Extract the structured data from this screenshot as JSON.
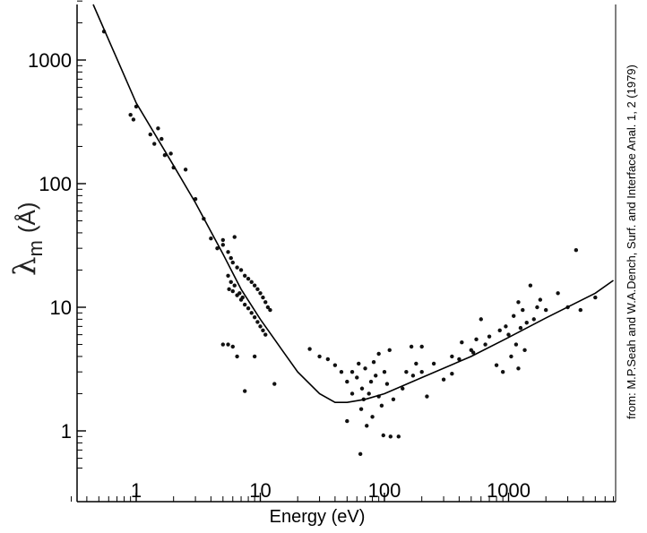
{
  "chart_data": {
    "type": "scatter",
    "title": "",
    "xlabel": "Energy (eV)",
    "ylabel": {
      "symbol": "λ",
      "subscript": "m",
      "unit": "(Å)"
    },
    "x_scale": "log",
    "y_scale": "log",
    "xlim": [
      0.3,
      7000
    ],
    "ylim": [
      0.45,
      3000
    ],
    "x_ticks": [
      {
        "value": 1,
        "label": "1"
      },
      {
        "value": 10,
        "label": "10"
      },
      {
        "value": 100,
        "label": "100"
      },
      {
        "value": 1000,
        "label": "1000"
      }
    ],
    "y_ticks": [
      {
        "value": 1,
        "label": "1"
      },
      {
        "value": 10,
        "label": "10"
      },
      {
        "value": 100,
        "label": "100"
      },
      {
        "value": 1000,
        "label": "1000"
      }
    ],
    "grid": false,
    "credit": "from: M.P.Seah and W.A.Dench, Surf. and Interface Anal. 1, 2 (1979)",
    "series": [
      {
        "kind": "points",
        "points": [
          [
            0.55,
            1700
          ],
          [
            0.9,
            360
          ],
          [
            0.95,
            330
          ],
          [
            1.0,
            420
          ],
          [
            1.3,
            250
          ],
          [
            1.4,
            210
          ],
          [
            1.5,
            280
          ],
          [
            1.6,
            230
          ],
          [
            1.7,
            170
          ],
          [
            1.9,
            175
          ],
          [
            2.0,
            135
          ],
          [
            2.5,
            130
          ],
          [
            3.0,
            75
          ],
          [
            3.5,
            52
          ],
          [
            4.0,
            36
          ],
          [
            4.5,
            30
          ],
          [
            5.0,
            32
          ],
          [
            5.0,
            35
          ],
          [
            5.5,
            28
          ],
          [
            5.8,
            25
          ],
          [
            6.0,
            23
          ],
          [
            6.5,
            21
          ],
          [
            7.0,
            20
          ],
          [
            7.5,
            18
          ],
          [
            8.0,
            17
          ],
          [
            8.5,
            16
          ],
          [
            9.0,
            15
          ],
          [
            9.5,
            14
          ],
          [
            10.0,
            13
          ],
          [
            10.5,
            12
          ],
          [
            11.0,
            11
          ],
          [
            11.5,
            10
          ],
          [
            12.0,
            9.5
          ],
          [
            6.2,
            37
          ],
          [
            5.6,
            14
          ],
          [
            6.0,
            13.5
          ],
          [
            6.5,
            12.5
          ],
          [
            7.0,
            11.5
          ],
          [
            7.5,
            10.5
          ],
          [
            8.0,
            9.8
          ],
          [
            8.5,
            9.0
          ],
          [
            9.0,
            8.3
          ],
          [
            9.5,
            7.6
          ],
          [
            10.0,
            7.0
          ],
          [
            10.5,
            6.5
          ],
          [
            11.0,
            6.0
          ],
          [
            5.5,
            18
          ],
          [
            5.8,
            16
          ],
          [
            6.2,
            15
          ],
          [
            6.8,
            13
          ],
          [
            7.2,
            12
          ],
          [
            5.0,
            5.0
          ],
          [
            5.5,
            5.0
          ],
          [
            6.0,
            4.8
          ],
          [
            6.5,
            4.0
          ],
          [
            7.5,
            2.1
          ],
          [
            9.0,
            4.0
          ],
          [
            13.0,
            2.4
          ],
          [
            25.0,
            4.6
          ],
          [
            30.0,
            4.0
          ],
          [
            35.0,
            3.8
          ],
          [
            40.0,
            3.4
          ],
          [
            45.0,
            3.0
          ],
          [
            50.0,
            1.2
          ],
          [
            50.0,
            2.5
          ],
          [
            55.0,
            3.0
          ],
          [
            55.0,
            2.0
          ],
          [
            60.0,
            2.7
          ],
          [
            62.0,
            3.5
          ],
          [
            64.0,
            0.65
          ],
          [
            65.0,
            1.5
          ],
          [
            66.0,
            2.2
          ],
          [
            68.0,
            1.8
          ],
          [
            70.0,
            3.2
          ],
          [
            72.0,
            1.1
          ],
          [
            75.0,
            2.0
          ],
          [
            78.0,
            2.5
          ],
          [
            80.0,
            1.3
          ],
          [
            82.0,
            3.6
          ],
          [
            85.0,
            2.8
          ],
          [
            90.0,
            4.2
          ],
          [
            90.0,
            1.9
          ],
          [
            95.0,
            1.6
          ],
          [
            98.0,
            0.92
          ],
          [
            100.0,
            3.0
          ],
          [
            105.0,
            2.4
          ],
          [
            110.0,
            4.5
          ],
          [
            112.0,
            0.9
          ],
          [
            118.0,
            1.8
          ],
          [
            130.0,
            0.9
          ],
          [
            140.0,
            2.2
          ],
          [
            150.0,
            3.0
          ],
          [
            165.0,
            4.8
          ],
          [
            170.0,
            2.8
          ],
          [
            180.0,
            3.5
          ],
          [
            200.0,
            3.0
          ],
          [
            200.0,
            4.8
          ],
          [
            220.0,
            1.9
          ],
          [
            250.0,
            3.5
          ],
          [
            300.0,
            2.6
          ],
          [
            350.0,
            4.0
          ],
          [
            350.0,
            2.9
          ],
          [
            400.0,
            3.8
          ],
          [
            420.0,
            5.2
          ],
          [
            500.0,
            4.5
          ],
          [
            520.0,
            4.3
          ],
          [
            550.0,
            5.5
          ],
          [
            600.0,
            8.0
          ],
          [
            650.0,
            5.0
          ],
          [
            700.0,
            5.8
          ],
          [
            800.0,
            3.4
          ],
          [
            850.0,
            6.5
          ],
          [
            900.0,
            3.0
          ],
          [
            950.0,
            7.0
          ],
          [
            1000.0,
            6.0
          ],
          [
            1050.0,
            4.0
          ],
          [
            1100.0,
            8.5
          ],
          [
            1150.0,
            5.0
          ],
          [
            1200.0,
            3.2
          ],
          [
            1200.0,
            11.0
          ],
          [
            1250.0,
            6.8
          ],
          [
            1300.0,
            9.5
          ],
          [
            1350.0,
            4.5
          ],
          [
            1400.0,
            7.5
          ],
          [
            1500.0,
            15.0
          ],
          [
            1600.0,
            8.0
          ],
          [
            1700.0,
            10.0
          ],
          [
            1800.0,
            11.5
          ],
          [
            2000.0,
            9.5
          ],
          [
            2500.0,
            13.0
          ],
          [
            3000.0,
            10.0
          ],
          [
            3500.0,
            29.0
          ],
          [
            3800.0,
            9.5
          ],
          [
            5000.0,
            12.0
          ]
        ]
      },
      {
        "kind": "curve",
        "points": [
          [
            0.45,
            3000
          ],
          [
            1,
            450
          ],
          [
            2,
            140
          ],
          [
            3,
            70
          ],
          [
            5,
            27
          ],
          [
            7,
            14
          ],
          [
            10,
            8
          ],
          [
            15,
            4.5
          ],
          [
            20,
            3.0
          ],
          [
            30,
            2.0
          ],
          [
            40,
            1.7
          ],
          [
            50,
            1.7
          ],
          [
            70,
            1.8
          ],
          [
            100,
            2.0
          ],
          [
            200,
            2.7
          ],
          [
            500,
            4.0
          ],
          [
            1000,
            5.7
          ],
          [
            2000,
            8.2
          ],
          [
            5000,
            13.0
          ],
          [
            7000,
            16.5
          ]
        ]
      }
    ]
  }
}
